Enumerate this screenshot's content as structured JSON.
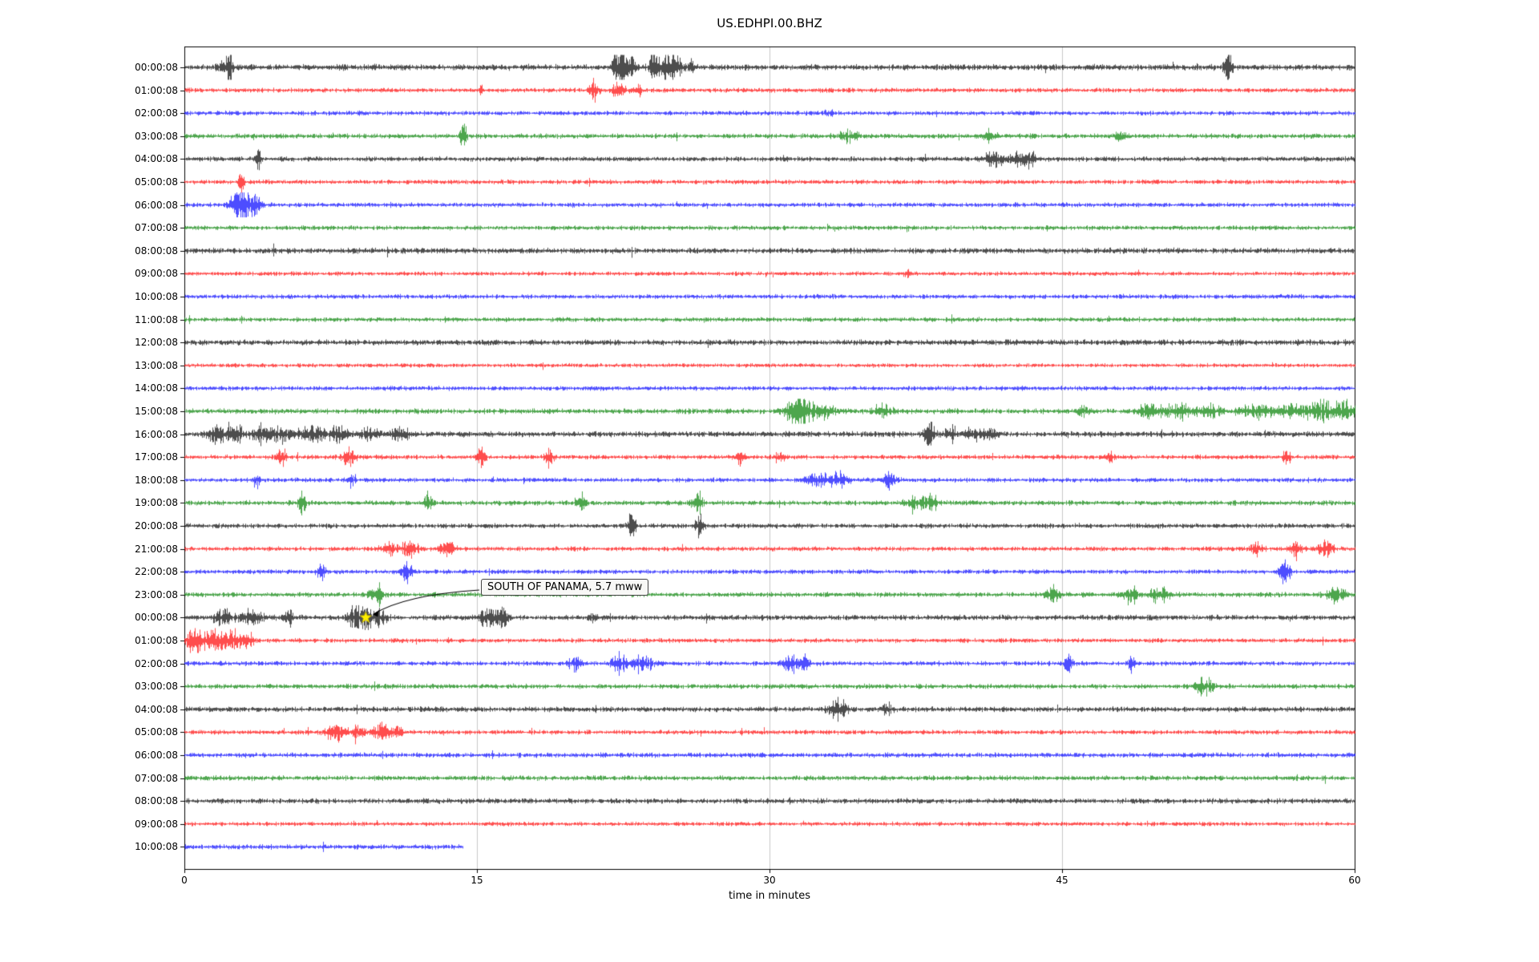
{
  "page": {
    "background": "#ffffff"
  },
  "chart_data": {
    "type": "line",
    "title": "US.EDHPI.00.BHZ",
    "xlabel": "time in minutes",
    "xlim": [
      0,
      60
    ],
    "x_ticks": [
      0,
      15,
      30,
      45,
      60
    ],
    "grid_x": [
      15,
      30,
      45
    ],
    "grid_color": "#c9c9c9",
    "trace_cycle_colors": [
      "#000000",
      "#ff0000",
      "#0000ff",
      "#008000"
    ],
    "annotation": {
      "text": "SOUTH OF PANAMA, 5.7 mww",
      "row_index": 24,
      "x_min": 9.3,
      "marker": "yellow-star",
      "marker_color": "#ffee00"
    },
    "rows": [
      {
        "label": "00:00:08",
        "color": "#000000",
        "base_amp": 1.6,
        "end_min": 60,
        "events": [
          [
            2.3,
            0.15,
            6
          ],
          [
            2.0,
            0.3,
            2
          ],
          [
            22.3,
            0.3,
            8
          ],
          [
            22.9,
            0.2,
            4
          ],
          [
            24.0,
            0.2,
            5
          ],
          [
            24.6,
            0.4,
            4
          ],
          [
            25.2,
            0.3,
            5
          ],
          [
            26.0,
            0.2,
            3
          ],
          [
            53.5,
            0.2,
            5
          ]
        ]
      },
      {
        "label": "01:00:08",
        "color": "#ff0000",
        "base_amp": 1.2,
        "end_min": 60,
        "events": [
          [
            21.0,
            0.2,
            6
          ],
          [
            22.3,
            0.4,
            3
          ],
          [
            23.3,
            0.2,
            2
          ],
          [
            15.2,
            0.1,
            1.5
          ]
        ]
      },
      {
        "label": "02:00:08",
        "color": "#0000ff",
        "base_amp": 1.2,
        "end_min": 60,
        "events": [
          [
            33.0,
            0.3,
            1
          ]
        ]
      },
      {
        "label": "03:00:08",
        "color": "#008000",
        "base_amp": 1.3,
        "end_min": 60,
        "events": [
          [
            14.3,
            0.15,
            7
          ],
          [
            34.0,
            0.5,
            2
          ],
          [
            41.3,
            0.3,
            2.5
          ],
          [
            48.0,
            0.3,
            1.5
          ]
        ]
      },
      {
        "label": "04:00:08",
        "color": "#000000",
        "base_amp": 1.3,
        "end_min": 60,
        "events": [
          [
            3.8,
            0.15,
            4
          ],
          [
            41.5,
            0.5,
            3
          ],
          [
            42.8,
            0.4,
            4
          ],
          [
            43.4,
            0.2,
            3
          ]
        ]
      },
      {
        "label": "05:00:08",
        "color": "#ff0000",
        "base_amp": 1.2,
        "end_min": 60,
        "events": [
          [
            2.9,
            0.12,
            6
          ]
        ]
      },
      {
        "label": "06:00:08",
        "color": "#0000ff",
        "base_amp": 1.2,
        "end_min": 60,
        "events": [
          [
            2.6,
            0.3,
            6
          ],
          [
            3.1,
            0.4,
            8
          ],
          [
            3.7,
            0.3,
            4
          ]
        ]
      },
      {
        "label": "07:00:08",
        "color": "#008000",
        "base_amp": 1.2,
        "end_min": 60,
        "events": []
      },
      {
        "label": "08:00:08",
        "color": "#000000",
        "base_amp": 1.5,
        "end_min": 60,
        "events": []
      },
      {
        "label": "09:00:08",
        "color": "#ff0000",
        "base_amp": 1.1,
        "end_min": 60,
        "events": [
          [
            37.0,
            0.2,
            1.5
          ]
        ]
      },
      {
        "label": "10:00:08",
        "color": "#0000ff",
        "base_amp": 1.2,
        "end_min": 60,
        "events": []
      },
      {
        "label": "11:00:08",
        "color": "#008000",
        "base_amp": 1.2,
        "end_min": 60,
        "events": []
      },
      {
        "label": "12:00:08",
        "color": "#000000",
        "base_amp": 1.5,
        "end_min": 60,
        "events": []
      },
      {
        "label": "13:00:08",
        "color": "#ff0000",
        "base_amp": 1.1,
        "end_min": 60,
        "events": []
      },
      {
        "label": "14:00:08",
        "color": "#0000ff",
        "base_amp": 1.2,
        "end_min": 60,
        "events": []
      },
      {
        "label": "15:00:08",
        "color": "#008000",
        "base_amp": 1.4,
        "end_min": 60,
        "events": [
          [
            31.3,
            0.5,
            5
          ],
          [
            32.0,
            0.6,
            4
          ],
          [
            33.0,
            0.4,
            2
          ],
          [
            35.8,
            0.4,
            3
          ],
          [
            46.0,
            0.3,
            2
          ],
          [
            49.5,
            0.6,
            3
          ],
          [
            51.0,
            0.8,
            2.5
          ],
          [
            52.5,
            0.6,
            2
          ],
          [
            55.0,
            0.8,
            2.5
          ],
          [
            57.0,
            0.8,
            2.5
          ],
          [
            58.5,
            0.8,
            3
          ],
          [
            59.5,
            0.5,
            3
          ]
        ]
      },
      {
        "label": "16:00:08",
        "color": "#000000",
        "base_amp": 1.5,
        "end_min": 60,
        "events": [
          [
            1.5,
            0.4,
            3
          ],
          [
            2.5,
            0.5,
            3
          ],
          [
            4.0,
            0.6,
            3
          ],
          [
            5.0,
            0.4,
            3
          ],
          [
            6.5,
            0.8,
            2.5
          ],
          [
            8.0,
            0.5,
            2.5
          ],
          [
            9.5,
            0.5,
            2
          ],
          [
            11.0,
            0.5,
            2
          ],
          [
            38.2,
            0.3,
            4
          ],
          [
            39.3,
            0.3,
            3
          ],
          [
            40.5,
            0.4,
            2.5
          ],
          [
            41.3,
            0.3,
            2
          ]
        ]
      },
      {
        "label": "17:00:08",
        "color": "#ff0000",
        "base_amp": 1.2,
        "end_min": 60,
        "events": [
          [
            5.0,
            0.2,
            5
          ],
          [
            8.4,
            0.3,
            5
          ],
          [
            15.2,
            0.2,
            5
          ],
          [
            18.7,
            0.2,
            5
          ],
          [
            28.5,
            0.2,
            4
          ],
          [
            30.5,
            0.2,
            3
          ],
          [
            47.5,
            0.15,
            2
          ],
          [
            56.5,
            0.2,
            3
          ]
        ]
      },
      {
        "label": "18:00:08",
        "color": "#0000ff",
        "base_amp": 1.2,
        "end_min": 60,
        "events": [
          [
            3.7,
            0.15,
            4
          ],
          [
            8.6,
            0.2,
            3
          ],
          [
            32.5,
            0.6,
            3
          ],
          [
            33.5,
            0.5,
            3
          ],
          [
            36.2,
            0.3,
            4
          ]
        ]
      },
      {
        "label": "19:00:08",
        "color": "#008000",
        "base_amp": 1.3,
        "end_min": 60,
        "events": [
          [
            6.0,
            0.2,
            5
          ],
          [
            12.5,
            0.2,
            5
          ],
          [
            20.3,
            0.2,
            4
          ],
          [
            26.3,
            0.25,
            6
          ],
          [
            37.5,
            0.5,
            3
          ],
          [
            38.3,
            0.3,
            3
          ]
        ]
      },
      {
        "label": "20:00:08",
        "color": "#000000",
        "base_amp": 1.3,
        "end_min": 60,
        "events": [
          [
            22.9,
            0.2,
            6
          ],
          [
            26.4,
            0.2,
            5
          ]
        ]
      },
      {
        "label": "21:00:08",
        "color": "#ff0000",
        "base_amp": 1.2,
        "end_min": 60,
        "events": [
          [
            10.5,
            0.4,
            3
          ],
          [
            11.5,
            0.4,
            4
          ],
          [
            13.5,
            0.4,
            3
          ],
          [
            55.0,
            0.3,
            3
          ],
          [
            57.0,
            0.3,
            4
          ],
          [
            58.5,
            0.4,
            4
          ]
        ]
      },
      {
        "label": "22:00:08",
        "color": "#0000ff",
        "base_amp": 1.2,
        "end_min": 60,
        "events": [
          [
            7.0,
            0.2,
            4
          ],
          [
            11.4,
            0.25,
            5
          ],
          [
            56.4,
            0.25,
            6
          ]
        ]
      },
      {
        "label": "23:00:08",
        "color": "#008000",
        "base_amp": 1.3,
        "end_min": 60,
        "events": [
          [
            9.8,
            0.3,
            4
          ],
          [
            44.5,
            0.3,
            4
          ],
          [
            48.5,
            0.4,
            4
          ],
          [
            50.0,
            0.5,
            3
          ],
          [
            59.0,
            0.5,
            3.5
          ]
        ]
      },
      {
        "label": "00:00:08",
        "color": "#000000",
        "base_amp": 1.4,
        "end_min": 60,
        "events": [
          [
            2.0,
            0.5,
            3
          ],
          [
            3.5,
            0.5,
            3
          ],
          [
            5.3,
            0.3,
            3
          ],
          [
            8.7,
            0.3,
            5
          ],
          [
            9.3,
            0.3,
            5
          ],
          [
            10.0,
            0.4,
            3
          ],
          [
            15.5,
            0.4,
            4
          ],
          [
            16.3,
            0.3,
            4
          ],
          [
            21.0,
            0.2,
            2
          ]
        ]
      },
      {
        "label": "01:00:08",
        "color": "#ff0000",
        "base_amp": 1.2,
        "end_min": 60,
        "events": [
          [
            0.5,
            0.4,
            6
          ],
          [
            1.5,
            0.5,
            7
          ],
          [
            2.5,
            0.4,
            5
          ],
          [
            3.2,
            0.3,
            4
          ]
        ]
      },
      {
        "label": "02:00:08",
        "color": "#0000ff",
        "base_amp": 1.2,
        "end_min": 60,
        "events": [
          [
            20.0,
            0.3,
            3
          ],
          [
            22.3,
            0.4,
            4
          ],
          [
            23.5,
            0.5,
            4
          ],
          [
            31.0,
            0.4,
            4
          ],
          [
            31.8,
            0.3,
            3
          ],
          [
            45.3,
            0.2,
            4
          ],
          [
            48.5,
            0.2,
            3
          ]
        ]
      },
      {
        "label": "03:00:08",
        "color": "#008000",
        "base_amp": 1.3,
        "end_min": 60,
        "events": [
          [
            52.3,
            0.4,
            4
          ]
        ]
      },
      {
        "label": "04:00:08",
        "color": "#000000",
        "base_amp": 1.4,
        "end_min": 60,
        "events": [
          [
            33.5,
            0.4,
            4
          ],
          [
            36.0,
            0.3,
            2
          ]
        ]
      },
      {
        "label": "05:00:08",
        "color": "#ff0000",
        "base_amp": 1.2,
        "end_min": 60,
        "events": [
          [
            7.8,
            0.5,
            4
          ],
          [
            8.8,
            0.4,
            4
          ],
          [
            10.0,
            0.4,
            4
          ],
          [
            10.8,
            0.3,
            3
          ]
        ]
      },
      {
        "label": "06:00:08",
        "color": "#0000ff",
        "base_amp": 1.3,
        "end_min": 60,
        "events": []
      },
      {
        "label": "07:00:08",
        "color": "#008000",
        "base_amp": 1.3,
        "end_min": 60,
        "events": []
      },
      {
        "label": "08:00:08",
        "color": "#000000",
        "base_amp": 1.4,
        "end_min": 60,
        "events": []
      },
      {
        "label": "09:00:08",
        "color": "#ff0000",
        "base_amp": 1.1,
        "end_min": 60,
        "events": []
      },
      {
        "label": "10:00:08",
        "color": "#0000ff",
        "base_amp": 1.3,
        "end_min": 14.3,
        "events": []
      }
    ]
  }
}
